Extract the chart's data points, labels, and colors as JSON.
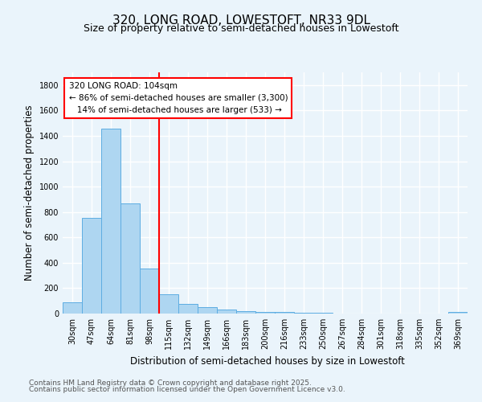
{
  "title1": "320, LONG ROAD, LOWESTOFT, NR33 9DL",
  "title2": "Size of property relative to semi-detached houses in Lowestoft",
  "xlabel": "Distribution of semi-detached houses by size in Lowestoft",
  "ylabel": "Number of semi-detached properties",
  "categories": [
    "30sqm",
    "47sqm",
    "64sqm",
    "81sqm",
    "98sqm",
    "115sqm",
    "132sqm",
    "149sqm",
    "166sqm",
    "183sqm",
    "200sqm",
    "216sqm",
    "233sqm",
    "250sqm",
    "267sqm",
    "284sqm",
    "301sqm",
    "318sqm",
    "335sqm",
    "352sqm",
    "369sqm"
  ],
  "values": [
    90,
    755,
    1455,
    865,
    355,
    150,
    75,
    52,
    33,
    22,
    15,
    12,
    5,
    4,
    3,
    2,
    2,
    1,
    1,
    1,
    15
  ],
  "bar_color": "#AED6F1",
  "bar_edge_color": "#5DADE2",
  "vline_color": "red",
  "annotation_line1": "320 LONG ROAD: 104sqm",
  "annotation_line2": "← 86% of semi-detached houses are smaller (3,300)",
  "annotation_line3": "   14% of semi-detached houses are larger (533) →",
  "annotation_box_color": "white",
  "annotation_box_edge_color": "red",
  "ylim": [
    0,
    1900
  ],
  "footnote1": "Contains HM Land Registry data © Crown copyright and database right 2025.",
  "footnote2": "Contains public sector information licensed under the Open Government Licence v3.0.",
  "bg_color": "#EAF4FB",
  "grid_color": "white",
  "title1_fontsize": 11,
  "title2_fontsize": 9,
  "xlabel_fontsize": 8.5,
  "ylabel_fontsize": 8.5,
  "tick_fontsize": 7,
  "annotation_fontsize": 7.5,
  "footnote_fontsize": 6.5
}
